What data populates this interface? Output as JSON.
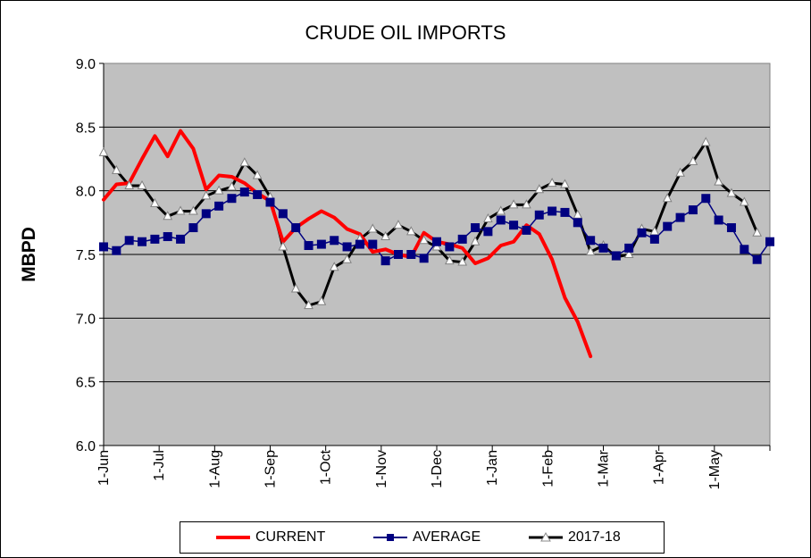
{
  "chart_data": {
    "type": "line",
    "title": "CRUDE OIL IMPORTS",
    "xlabel": "",
    "ylabel": "MBPD",
    "ylim": [
      6.0,
      9.0
    ],
    "yticks": [
      "6.0",
      "6.5",
      "7.0",
      "7.5",
      "8.0",
      "8.5",
      "9.0"
    ],
    "xticks": [
      "1-Jun",
      "1-Jul",
      "1-Aug",
      "1-Sep",
      "1-Oct",
      "1-Nov",
      "1-Dec",
      "1-Jan",
      "1-Feb",
      "1-Mar",
      "1-Apr",
      "1-May"
    ],
    "x_range_weeks": [
      0,
      52
    ],
    "grid": true,
    "legend_position": "bottom",
    "series": [
      {
        "name": "CURRENT",
        "color": "#ff0000",
        "marker": "none",
        "values": [
          7.93,
          8.05,
          8.06,
          8.25,
          8.43,
          8.27,
          8.47,
          8.33,
          8.01,
          8.12,
          8.11,
          8.06,
          7.98,
          7.92,
          7.6,
          7.71,
          7.78,
          7.84,
          7.79,
          7.7,
          7.66,
          7.52,
          7.54,
          7.5,
          7.48,
          7.67,
          7.6,
          7.58,
          7.55,
          7.43,
          7.47,
          7.57,
          7.6,
          7.73,
          7.66,
          7.46,
          7.16,
          6.97,
          6.7
        ]
      },
      {
        "name": "AVERAGE",
        "color": "#000080",
        "marker": "square",
        "values": [
          7.56,
          7.53,
          7.61,
          7.6,
          7.62,
          7.64,
          7.62,
          7.71,
          7.82,
          7.88,
          7.94,
          7.99,
          7.97,
          7.91,
          7.82,
          7.71,
          7.57,
          7.58,
          7.61,
          7.56,
          7.58,
          7.58,
          7.45,
          7.5,
          7.5,
          7.47,
          7.6,
          7.56,
          7.62,
          7.71,
          7.68,
          7.77,
          7.73,
          7.69,
          7.81,
          7.84,
          7.83,
          7.75,
          7.61,
          7.55,
          7.49,
          7.55,
          7.67,
          7.62,
          7.72,
          7.79,
          7.85,
          7.94,
          7.77,
          7.71,
          7.54,
          7.46,
          7.6
        ]
      },
      {
        "name": "2017-18",
        "color": "#000000",
        "marker": "triangle",
        "values": [
          8.3,
          8.16,
          8.04,
          8.04,
          7.9,
          7.8,
          7.84,
          7.84,
          7.96,
          8.0,
          8.03,
          8.22,
          8.12,
          7.95,
          7.56,
          7.23,
          7.1,
          7.13,
          7.4,
          7.46,
          7.62,
          7.7,
          7.64,
          7.73,
          7.68,
          7.61,
          7.56,
          7.45,
          7.44,
          7.6,
          7.78,
          7.84,
          7.89,
          7.89,
          8.01,
          8.06,
          8.05,
          7.81,
          7.52,
          7.57,
          7.48,
          7.5,
          7.7,
          7.68,
          7.94,
          8.14,
          8.23,
          8.38,
          8.07,
          7.98,
          7.91,
          7.67
        ]
      }
    ]
  }
}
